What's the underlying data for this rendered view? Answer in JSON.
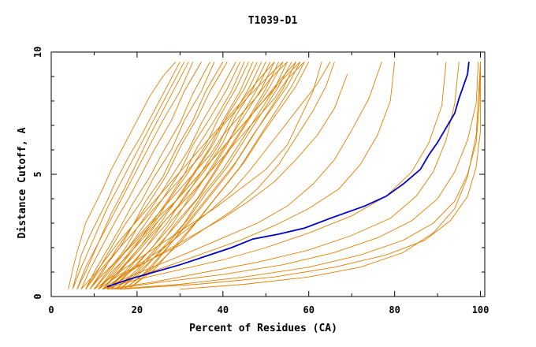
{
  "chart_data": {
    "type": "line",
    "title": "T1039-D1",
    "xlabel": "Percent of Residues (CA)",
    "ylabel": "Distance Cutoff, A",
    "xlim": [
      0,
      101
    ],
    "ylim": [
      0,
      10
    ],
    "xticks": [
      "0",
      "20",
      "40",
      "60",
      "80",
      "100"
    ],
    "yticks": [
      "0",
      "5",
      "10"
    ],
    "grid": false,
    "legend": "none",
    "colors": {
      "highlight": "#0000cc",
      "others": "#e08000"
    },
    "highlight_series": {
      "x": [
        13,
        18,
        24,
        30,
        36,
        42,
        47,
        53,
        59,
        65,
        73,
        78,
        82,
        86,
        88,
        90,
        92,
        94,
        95,
        96,
        97,
        97.3
      ],
      "y": [
        0.4,
        0.7,
        1.0,
        1.3,
        1.65,
        2.0,
        2.35,
        2.55,
        2.8,
        3.2,
        3.7,
        4.1,
        4.6,
        5.2,
        5.8,
        6.3,
        6.9,
        7.5,
        8.1,
        8.6,
        9.1,
        9.6
      ]
    },
    "other_series": [
      {
        "x": [
          4,
          5,
          6,
          7,
          8,
          10,
          12,
          14,
          17,
          20,
          23,
          26,
          29
        ],
        "y": [
          0.3,
          1.1,
          1.8,
          2.4,
          3.0,
          3.7,
          4.4,
          5.2,
          6.2,
          7.2,
          8.2,
          9.0,
          9.6
        ]
      },
      {
        "x": [
          5,
          6,
          7,
          9,
          11,
          13,
          15,
          18,
          21,
          24,
          27,
          30
        ],
        "y": [
          0.3,
          1.0,
          1.7,
          2.5,
          3.2,
          3.9,
          4.7,
          5.7,
          6.6,
          7.6,
          8.6,
          9.6
        ]
      },
      {
        "x": [
          5,
          7,
          9,
          11,
          13,
          16,
          19,
          22,
          25,
          28,
          31
        ],
        "y": [
          0.3,
          1.2,
          2.0,
          2.8,
          3.6,
          4.6,
          5.6,
          6.6,
          7.6,
          8.6,
          9.6
        ]
      },
      {
        "x": [
          6,
          8,
          10,
          12,
          14,
          17,
          20,
          23,
          26,
          29,
          32
        ],
        "y": [
          0.3,
          1.0,
          1.8,
          2.6,
          3.4,
          4.4,
          5.5,
          6.6,
          7.6,
          8.6,
          9.6
        ]
      },
      {
        "x": [
          6,
          8,
          11,
          14,
          17,
          20,
          23,
          26,
          30,
          33
        ],
        "y": [
          0.3,
          1.2,
          2.2,
          3.2,
          4.2,
          5.2,
          6.2,
          7.2,
          8.4,
          9.6
        ]
      },
      {
        "x": [
          7,
          9,
          12,
          15,
          18,
          21,
          24,
          28,
          31,
          35
        ],
        "y": [
          0.3,
          1.1,
          2.1,
          3.1,
          4.0,
          5.0,
          6.0,
          7.2,
          8.4,
          9.6
        ]
      },
      {
        "x": [
          8,
          10,
          13,
          16,
          19,
          23,
          26,
          30,
          33,
          37
        ],
        "y": [
          0.3,
          1.0,
          1.9,
          2.8,
          3.8,
          4.9,
          5.9,
          7.1,
          8.3,
          9.6
        ]
      },
      {
        "x": [
          8,
          11,
          14,
          17,
          21,
          24,
          28,
          31,
          35,
          38
        ],
        "y": [
          0.3,
          1.1,
          2.0,
          2.9,
          3.9,
          4.9,
          6.0,
          7.2,
          8.4,
          9.6
        ]
      },
      {
        "x": [
          9,
          12,
          15,
          19,
          22,
          26,
          29,
          33,
          36,
          40
        ],
        "y": [
          0.3,
          1.0,
          1.9,
          2.9,
          3.9,
          4.9,
          6.0,
          7.2,
          8.4,
          9.6
        ]
      },
      {
        "x": [
          9,
          12,
          16,
          19,
          23,
          27,
          30,
          34,
          37,
          41
        ],
        "y": [
          0.3,
          1.1,
          2.0,
          2.9,
          3.9,
          5.0,
          6.1,
          7.3,
          8.4,
          9.6
        ]
      },
      {
        "x": [
          10,
          13,
          17,
          20,
          24,
          28,
          32,
          35,
          39,
          43
        ],
        "y": [
          0.3,
          1.0,
          1.9,
          2.8,
          3.8,
          4.9,
          6.0,
          7.1,
          8.3,
          9.6
        ]
      },
      {
        "x": [
          10,
          14,
          18,
          22,
          26,
          30,
          33,
          37,
          41,
          44
        ],
        "y": [
          0.3,
          1.1,
          2.0,
          3.0,
          4.0,
          5.1,
          6.2,
          7.3,
          8.5,
          9.6
        ]
      },
      {
        "x": [
          11,
          15,
          19,
          23,
          27,
          31,
          34,
          38,
          42,
          45
        ],
        "y": [
          0.3,
          1.0,
          1.9,
          2.9,
          3.9,
          5.0,
          6.1,
          7.2,
          8.4,
          9.6
        ]
      },
      {
        "x": [
          11,
          15,
          19,
          24,
          28,
          32,
          36,
          39,
          43,
          46
        ],
        "y": [
          0.3,
          1.1,
          2.0,
          3.0,
          4.1,
          5.1,
          6.2,
          7.3,
          8.5,
          9.6
        ]
      },
      {
        "x": [
          12,
          16,
          20,
          25,
          29,
          33,
          37,
          40,
          44,
          47
        ],
        "y": [
          0.3,
          1.0,
          1.9,
          2.9,
          3.9,
          5.0,
          6.1,
          7.2,
          8.4,
          9.6
        ]
      },
      {
        "x": [
          12,
          16,
          21,
          25,
          30,
          34,
          38,
          41,
          45,
          48
        ],
        "y": [
          0.3,
          1.1,
          2.1,
          3.1,
          4.1,
          5.2,
          6.3,
          7.4,
          8.5,
          9.6
        ]
      },
      {
        "x": [
          13,
          17,
          22,
          26,
          31,
          35,
          39,
          42,
          46,
          49
        ],
        "y": [
          0.3,
          1.0,
          2.0,
          3.0,
          4.0,
          5.1,
          6.2,
          7.3,
          8.5,
          9.6
        ]
      },
      {
        "x": [
          13,
          18,
          22,
          27,
          31,
          36,
          40,
          43,
          47,
          50
        ],
        "y": [
          0.3,
          1.1,
          2.0,
          3.0,
          4.1,
          5.2,
          6.3,
          7.4,
          8.5,
          9.6
        ]
      },
      {
        "x": [
          14,
          18,
          23,
          28,
          32,
          37,
          41,
          44,
          48,
          51
        ],
        "y": [
          0.3,
          1.0,
          1.9,
          2.9,
          4.0,
          5.1,
          6.2,
          7.3,
          8.5,
          9.6
        ]
      },
      {
        "x": [
          14,
          19,
          24,
          28,
          33,
          37,
          41,
          45,
          49,
          52
        ],
        "y": [
          0.3,
          1.1,
          2.1,
          3.1,
          4.1,
          5.2,
          6.3,
          7.4,
          8.5,
          9.6
        ]
      },
      {
        "x": [
          15,
          20,
          25,
          29,
          34,
          38,
          42,
          46,
          50,
          53
        ],
        "y": [
          0.3,
          1.0,
          2.0,
          3.0,
          4.0,
          5.1,
          6.2,
          7.3,
          8.5,
          9.6
        ]
      },
      {
        "x": [
          15,
          20,
          25,
          30,
          35,
          39,
          43,
          47,
          51,
          54
        ],
        "y": [
          0.3,
          1.1,
          2.1,
          3.1,
          4.2,
          5.3,
          6.4,
          7.5,
          8.6,
          9.6
        ]
      },
      {
        "x": [
          16,
          21,
          26,
          31,
          35,
          40,
          44,
          48,
          52,
          55
        ],
        "y": [
          0.3,
          1.0,
          2.0,
          3.0,
          4.1,
          5.2,
          6.3,
          7.4,
          8.5,
          9.6
        ]
      },
      {
        "x": [
          16,
          21,
          27,
          32,
          36,
          41,
          45,
          49,
          53,
          56
        ],
        "y": [
          0.3,
          1.1,
          2.1,
          3.2,
          4.2,
          5.3,
          6.4,
          7.5,
          8.6,
          9.6
        ]
      },
      {
        "x": [
          17,
          22,
          27,
          32,
          37,
          42,
          46,
          50,
          54,
          57
        ],
        "y": [
          0.3,
          1.0,
          2.0,
          3.0,
          4.1,
          5.2,
          6.3,
          7.4,
          8.5,
          9.6
        ]
      },
      {
        "x": [
          17,
          23,
          28,
          33,
          38,
          43,
          47,
          51,
          55,
          58
        ],
        "y": [
          0.3,
          1.1,
          2.2,
          3.3,
          4.4,
          5.5,
          6.6,
          7.6,
          8.6,
          9.6
        ]
      },
      {
        "x": [
          18,
          24,
          29,
          34,
          39,
          44,
          48,
          52,
          56,
          59
        ],
        "y": [
          0.3,
          1.1,
          2.1,
          3.1,
          4.2,
          5.3,
          6.4,
          7.5,
          8.6,
          9.6
        ]
      },
      {
        "x": [
          18,
          24,
          30,
          35,
          40,
          45,
          49,
          53,
          57,
          60
        ],
        "y": [
          0.3,
          1.2,
          2.2,
          3.3,
          4.4,
          5.5,
          6.6,
          7.6,
          8.6,
          9.6
        ]
      },
      {
        "x": [
          7,
          10,
          13,
          16,
          20,
          24,
          28,
          32,
          36,
          40,
          44,
          48,
          52
        ],
        "y": [
          0.3,
          0.9,
          1.6,
          2.3,
          3.1,
          3.9,
          4.7,
          5.5,
          6.3,
          7.1,
          7.9,
          8.8,
          9.6
        ]
      },
      {
        "x": [
          9,
          12,
          16,
          20,
          24,
          29,
          33,
          37,
          41,
          45,
          49,
          53,
          57
        ],
        "y": [
          0.3,
          0.9,
          1.6,
          2.3,
          3.1,
          3.9,
          4.7,
          5.5,
          6.3,
          7.1,
          7.9,
          8.8,
          9.6
        ]
      },
      {
        "x": [
          8,
          11,
          15,
          19,
          23,
          27,
          31,
          35,
          38,
          42,
          46,
          50,
          54
        ],
        "y": [
          0.3,
          1.0,
          1.8,
          2.6,
          3.4,
          4.2,
          5.0,
          5.8,
          6.6,
          7.4,
          8.2,
          8.9,
          9.6
        ]
      },
      {
        "x": [
          10,
          13,
          17,
          21,
          25,
          29,
          33,
          37,
          40,
          44,
          48,
          51,
          55
        ],
        "y": [
          0.3,
          1.0,
          1.8,
          2.6,
          3.4,
          4.2,
          5.0,
          5.8,
          6.6,
          7.4,
          8.2,
          8.9,
          9.6
        ]
      },
      {
        "x": [
          11,
          14,
          18,
          22,
          26,
          30,
          34,
          38,
          42,
          46,
          50,
          54,
          58
        ],
        "y": [
          0.3,
          1.0,
          1.7,
          2.5,
          3.3,
          4.1,
          4.9,
          5.7,
          6.5,
          7.3,
          8.1,
          8.9,
          9.6
        ]
      },
      {
        "x": [
          12,
          15,
          19,
          23,
          27,
          32,
          36,
          40,
          44,
          48,
          52,
          55,
          59
        ],
        "y": [
          0.3,
          0.9,
          1.6,
          2.4,
          3.2,
          4.1,
          4.9,
          5.7,
          6.5,
          7.3,
          8.1,
          8.9,
          9.6
        ]
      },
      {
        "x": [
          13,
          17,
          22,
          27,
          32,
          37,
          42,
          46,
          50,
          54,
          58,
          62,
          65
        ],
        "y": [
          0.3,
          0.9,
          1.5,
          2.1,
          2.8,
          3.5,
          4.3,
          5.1,
          6.0,
          6.9,
          7.8,
          8.7,
          9.6
        ]
      },
      {
        "x": [
          12,
          17,
          23,
          30,
          36,
          42,
          48,
          53,
          57,
          61,
          64,
          66
        ],
        "y": [
          0.3,
          0.9,
          1.5,
          2.1,
          2.8,
          3.5,
          4.4,
          5.4,
          6.5,
          7.6,
          8.6,
          9.6
        ]
      },
      {
        "x": [
          10,
          15,
          20,
          26,
          32,
          38,
          44,
          50,
          55,
          58,
          61,
          63
        ],
        "y": [
          0.3,
          0.9,
          1.5,
          2.2,
          2.9,
          3.6,
          4.4,
          5.2,
          6.2,
          7.3,
          8.4,
          9.6
        ]
      },
      {
        "x": [
          11,
          16,
          22,
          28,
          34,
          40,
          46,
          52,
          57,
          62,
          66,
          69
        ],
        "y": [
          0.3,
          0.9,
          1.4,
          2.0,
          2.6,
          3.2,
          3.9,
          4.7,
          5.6,
          6.6,
          7.7,
          9.1
        ]
      },
      {
        "x": [
          12,
          18,
          25,
          32,
          40,
          48,
          55,
          61,
          66,
          70,
          74,
          77
        ],
        "y": [
          0.3,
          0.8,
          1.3,
          1.8,
          2.4,
          3.0,
          3.7,
          4.6,
          5.6,
          6.8,
          8.1,
          9.6
        ]
      },
      {
        "x": [
          13,
          20,
          28,
          36,
          44,
          52,
          60,
          67,
          72,
          76,
          79,
          80
        ],
        "y": [
          0.3,
          0.8,
          1.3,
          1.8,
          2.3,
          2.9,
          3.6,
          4.4,
          5.4,
          6.6,
          8.0,
          9.6
        ]
      },
      {
        "x": [
          12,
          20,
          30,
          40,
          50,
          60,
          70,
          78,
          84,
          88,
          91,
          92
        ],
        "y": [
          0.3,
          0.7,
          1.1,
          1.5,
          2.0,
          2.6,
          3.3,
          4.1,
          5.1,
          6.3,
          7.8,
          9.6
        ]
      },
      {
        "x": [
          13,
          24,
          36,
          48,
          60,
          70,
          79,
          85,
          89,
          92,
          94,
          95
        ],
        "y": [
          0.3,
          0.6,
          1.0,
          1.4,
          1.9,
          2.5,
          3.2,
          4.1,
          5.1,
          6.4,
          7.9,
          9.6
        ]
      },
      {
        "x": [
          14,
          26,
          40,
          54,
          66,
          76,
          84,
          90,
          94,
          97,
          99,
          99.5
        ],
        "y": [
          0.3,
          0.6,
          0.9,
          1.3,
          1.8,
          2.4,
          3.1,
          4.0,
          5.1,
          6.4,
          7.9,
          9.6
        ]
      },
      {
        "x": [
          15,
          30,
          45,
          60,
          72,
          82,
          89,
          94,
          97,
          99,
          99.7,
          100
        ],
        "y": [
          0.3,
          0.5,
          0.8,
          1.2,
          1.7,
          2.3,
          3.0,
          3.9,
          5.0,
          6.3,
          7.8,
          9.6
        ]
      },
      {
        "x": [
          16,
          34,
          52,
          66,
          78,
          87,
          93,
          97,
          99,
          100,
          100
        ],
        "y": [
          0.3,
          0.5,
          0.8,
          1.2,
          1.7,
          2.3,
          3.1,
          4.1,
          5.3,
          6.8,
          9.6
        ]
      },
      {
        "x": [
          30,
          45,
          60,
          72,
          82,
          89,
          94,
          97,
          99,
          100
        ],
        "y": [
          0.3,
          0.5,
          0.8,
          1.2,
          1.8,
          2.6,
          3.6,
          4.9,
          6.6,
          9.6
        ]
      }
    ]
  }
}
